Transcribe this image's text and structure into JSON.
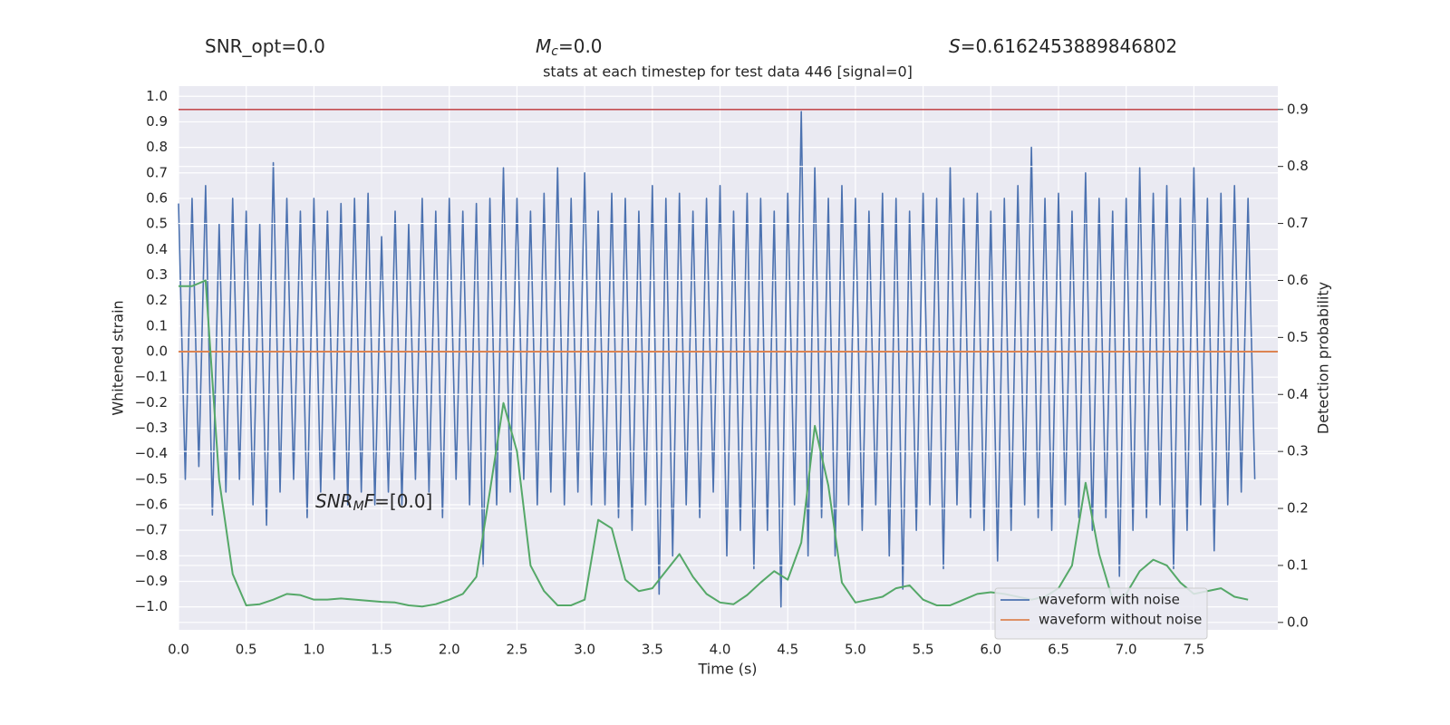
{
  "chart_data": {
    "type": "line",
    "title": "stats at each timestep for test data 446 [signal=0]",
    "annotations": [
      {
        "parts": [
          {
            "text": "SNR_opt=0.0"
          }
        ]
      },
      {
        "parts": [
          {
            "text": "M",
            "style": "italic"
          },
          {
            "text": "c",
            "style": "sub"
          },
          {
            "text": "=0.0"
          }
        ]
      },
      {
        "parts": [
          {
            "text": "S",
            "style": "italic"
          },
          {
            "text": "=0.6162453889846802"
          }
        ]
      },
      {
        "parts": [
          {
            "text": "SNR",
            "style": "italic"
          },
          {
            "text": "M",
            "style": "sub"
          },
          {
            "text": "F",
            "style": "italic"
          },
          {
            "text": "=[0.0]"
          }
        ]
      }
    ],
    "x_label": "Time (s)",
    "y_label": "Whitened strain",
    "y2_label": "Detection probability",
    "xlim": [
      0,
      8.12
    ],
    "ylim": [
      -1.09,
      1.04
    ],
    "y2lim": [
      -0.013,
      0.941
    ],
    "xticks": [
      {
        "value": 0,
        "label": "0.0"
      },
      0.5,
      {
        "value": 1,
        "label": "1.0"
      },
      1.5,
      {
        "value": 2,
        "label": "2.0"
      },
      2.5,
      {
        "value": 3,
        "label": "3.0"
      },
      3.5,
      {
        "value": 4,
        "label": "4.0"
      },
      4.5,
      {
        "value": 5,
        "label": "5.0"
      },
      5.5,
      {
        "value": 6,
        "label": "6.0"
      },
      6.5,
      {
        "value": 7,
        "label": "7.0"
      },
      7.5
    ],
    "yticks": [
      {
        "value": -1,
        "label": "−1.0"
      },
      {
        "value": -0.9,
        "label": "−0.9"
      },
      {
        "value": -0.8,
        "label": "−0.8"
      },
      {
        "value": -0.7,
        "label": "−0.7"
      },
      {
        "value": -0.6,
        "label": "−0.6"
      },
      {
        "value": -0.5,
        "label": "−0.5"
      },
      {
        "value": -0.4,
        "label": "−0.4"
      },
      {
        "value": -0.3,
        "label": "−0.3"
      },
      {
        "value": -0.2,
        "label": "−0.2"
      },
      {
        "value": -0.1,
        "label": "−0.1"
      },
      {
        "value": 0,
        "label": "0.0"
      },
      0.1,
      0.2,
      0.3,
      0.4,
      0.5,
      0.6,
      0.7,
      0.8,
      0.9,
      {
        "value": 1,
        "label": "1.0"
      }
    ],
    "y2ticks": [
      {
        "value": 0,
        "label": "0.0"
      },
      0.1,
      0.2,
      0.3,
      0.4,
      0.5,
      0.6,
      0.7,
      0.8,
      0.9
    ],
    "grid": true,
    "background": "#eaeaf2",
    "legend": "lower right",
    "hlines": [
      {
        "value": 0.9,
        "axis": "y2",
        "color": "#c44e52"
      }
    ],
    "series": [
      {
        "name": "waveform with noise",
        "color": "#4c72b0",
        "x": [
          0,
          0.05,
          0.1,
          0.15,
          0.2,
          0.25,
          0.3,
          0.35,
          0.4,
          0.45,
          0.5,
          0.55,
          0.6,
          0.65,
          0.7,
          0.75,
          0.8,
          0.85,
          0.9,
          0.95,
          1,
          1.05,
          1.1,
          1.15,
          1.2,
          1.25,
          1.3,
          1.35,
          1.4,
          1.45,
          1.5,
          1.55,
          1.6,
          1.65,
          1.7,
          1.75,
          1.8,
          1.85,
          1.9,
          1.95,
          2,
          2.05,
          2.1,
          2.15,
          2.2,
          2.25,
          2.3,
          2.35,
          2.4,
          2.45,
          2.5,
          2.55,
          2.6,
          2.65,
          2.7,
          2.75,
          2.8,
          2.85,
          2.9,
          2.95,
          3,
          3.05,
          3.1,
          3.15,
          3.2,
          3.25,
          3.3,
          3.35,
          3.4,
          3.45,
          3.5,
          3.55,
          3.6,
          3.65,
          3.7,
          3.75,
          3.8,
          3.85,
          3.9,
          3.95,
          4,
          4.05,
          4.1,
          4.15,
          4.2,
          4.25,
          4.3,
          4.35,
          4.4,
          4.45,
          4.5,
          4.55,
          4.6,
          4.65,
          4.7,
          4.75,
          4.8,
          4.85,
          4.9,
          4.95,
          5,
          5.05,
          5.1,
          5.15,
          5.2,
          5.25,
          5.3,
          5.35,
          5.4,
          5.45,
          5.5,
          5.55,
          5.6,
          5.65,
          5.7,
          5.75,
          5.8,
          5.85,
          5.9,
          5.95,
          6,
          6.05,
          6.1,
          6.15,
          6.2,
          6.25,
          6.3,
          6.35,
          6.4,
          6.45,
          6.5,
          6.55,
          6.6,
          6.65,
          6.7,
          6.75,
          6.8,
          6.85,
          6.9,
          6.95,
          7,
          7.05,
          7.1,
          7.15,
          7.2,
          7.25,
          7.3,
          7.35,
          7.4,
          7.45,
          7.5,
          7.55,
          7.6,
          7.65,
          7.7,
          7.75,
          7.8,
          7.85,
          7.9,
          7.95
        ],
        "values": [
          0.58,
          -0.5,
          0.6,
          -0.45,
          0.65,
          -0.64,
          0.5,
          -0.55,
          0.6,
          -0.5,
          0.55,
          -0.6,
          0.5,
          -0.68,
          0.74,
          -0.55,
          0.6,
          -0.5,
          0.55,
          -0.65,
          0.6,
          -0.55,
          0.55,
          -0.5,
          0.58,
          -0.6,
          0.6,
          -0.55,
          0.62,
          -0.6,
          0.45,
          -0.55,
          0.55,
          -0.6,
          0.5,
          -0.5,
          0.6,
          -0.55,
          0.55,
          -0.65,
          0.6,
          -0.5,
          0.55,
          -0.6,
          0.58,
          -0.84,
          0.6,
          -0.6,
          0.72,
          -0.55,
          0.6,
          -0.5,
          0.55,
          -0.6,
          0.62,
          -0.55,
          0.72,
          -0.6,
          0.6,
          -0.55,
          0.7,
          -0.6,
          0.55,
          -0.6,
          0.62,
          -0.65,
          0.6,
          -0.7,
          0.55,
          -0.6,
          0.65,
          -0.95,
          0.6,
          -0.8,
          0.62,
          -0.6,
          0.55,
          -0.65,
          0.6,
          -0.55,
          0.65,
          -0.8,
          0.55,
          -0.7,
          0.62,
          -0.85,
          0.6,
          -0.7,
          0.55,
          -1.0,
          0.62,
          -0.6,
          0.94,
          -0.8,
          0.72,
          -0.65,
          0.6,
          -0.8,
          0.65,
          -0.6,
          0.6,
          -0.7,
          0.55,
          -0.6,
          0.62,
          -0.8,
          0.6,
          -0.93,
          0.55,
          -0.7,
          0.62,
          -0.6,
          0.6,
          -0.85,
          0.72,
          -0.6,
          0.6,
          -0.65,
          0.62,
          -0.7,
          0.55,
          -0.82,
          0.6,
          -0.7,
          0.65,
          -0.6,
          0.8,
          -0.65,
          0.6,
          -0.7,
          0.62,
          -0.6,
          0.55,
          -0.65,
          0.7,
          -0.7,
          0.6,
          -0.65,
          0.55,
          -0.88,
          0.6,
          -0.7,
          0.72,
          -0.65,
          0.62,
          -0.6,
          0.65,
          -0.85,
          0.6,
          -0.7,
          0.72,
          -0.6,
          0.6,
          -0.78,
          0.62,
          -0.6,
          0.65,
          -0.55,
          0.6,
          -0.5
        ]
      },
      {
        "name": "waveform without noise",
        "color": "#dd8452",
        "x": [
          0,
          8.12
        ],
        "values": [
          0,
          0
        ]
      },
      {
        "color": "#55a868",
        "axis": "y2",
        "x": [
          0,
          0.1,
          0.2,
          0.3,
          0.4,
          0.5,
          0.6,
          0.7,
          0.8,
          0.9,
          1,
          1.1,
          1.2,
          1.3,
          1.4,
          1.5,
          1.6,
          1.7,
          1.8,
          1.9,
          2,
          2.1,
          2.2,
          2.3,
          2.4,
          2.5,
          2.6,
          2.7,
          2.8,
          2.9,
          3,
          3.1,
          3.2,
          3.3,
          3.4,
          3.5,
          3.6,
          3.7,
          3.8,
          3.9,
          4,
          4.1,
          4.2,
          4.3,
          4.4,
          4.5,
          4.6,
          4.7,
          4.8,
          4.9,
          5,
          5.1,
          5.2,
          5.3,
          5.4,
          5.5,
          5.6,
          5.7,
          5.8,
          5.9,
          6,
          6.1,
          6.2,
          6.3,
          6.4,
          6.5,
          6.6,
          6.7,
          6.8,
          6.9,
          7,
          7.1,
          7.2,
          7.3,
          7.4,
          7.5,
          7.6,
          7.7,
          7.8,
          7.9
        ],
        "values": [
          0.59,
          0.59,
          0.6,
          0.25,
          0.085,
          0.03,
          0.032,
          0.04,
          0.05,
          0.048,
          0.04,
          0.04,
          0.042,
          0.04,
          0.038,
          0.036,
          0.035,
          0.03,
          0.028,
          0.032,
          0.04,
          0.05,
          0.08,
          0.23,
          0.385,
          0.3,
          0.1,
          0.055,
          0.03,
          0.03,
          0.04,
          0.18,
          0.165,
          0.075,
          0.055,
          0.06,
          0.09,
          0.12,
          0.08,
          0.05,
          0.035,
          0.032,
          0.048,
          0.07,
          0.09,
          0.075,
          0.14,
          0.345,
          0.24,
          0.07,
          0.035,
          0.04,
          0.045,
          0.06,
          0.065,
          0.04,
          0.03,
          0.03,
          0.04,
          0.05,
          0.053,
          0.05,
          0.045,
          0.04,
          0.045,
          0.06,
          0.1,
          0.245,
          0.12,
          0.04,
          0.05,
          0.09,
          0.11,
          0.1,
          0.07,
          0.05,
          0.055,
          0.06,
          0.045,
          0.04
        ]
      }
    ]
  }
}
